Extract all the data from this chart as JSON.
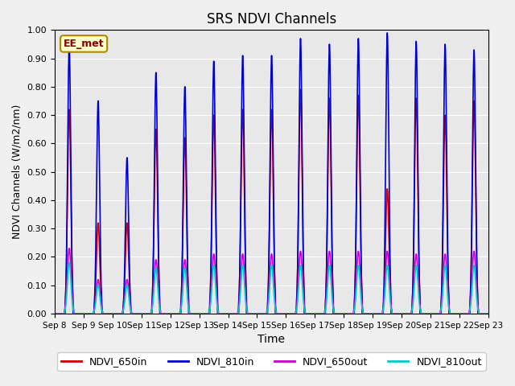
{
  "title": "SRS NDVI Channels",
  "xlabel": "Time",
  "ylabel": "NDVI Channels (W/m2/nm)",
  "annotation": "EE_met",
  "xlim_days": [
    0,
    15
  ],
  "ylim": [
    0.0,
    1.0
  ],
  "yticks": [
    0.0,
    0.1,
    0.2,
    0.3,
    0.4,
    0.5,
    0.6,
    0.7,
    0.8,
    0.9,
    1.0
  ],
  "x_tick_labels": [
    "Sep 8",
    "Sep 9",
    "Sep 10",
    "Sep 11",
    "Sep 12",
    "Sep 13",
    "Sep 14",
    "Sep 15",
    "Sep 16",
    "Sep 17",
    "Sep 18",
    "Sep 19",
    "Sep 20",
    "Sep 21",
    "Sep 22",
    "Sep 23"
  ],
  "background_color": "#e8e8e8",
  "colors": {
    "NDVI_650in": "#cc0000",
    "NDVI_810in": "#0000cc",
    "NDVI_650out": "#cc00cc",
    "NDVI_810out": "#00cccc"
  },
  "peak_810in": [
    0.95,
    0.75,
    0.55,
    0.85,
    0.8,
    0.89,
    0.91,
    0.91,
    0.97,
    0.95,
    0.97,
    0.99,
    0.96,
    0.95,
    0.93
  ],
  "peak_650in": [
    0.72,
    0.32,
    0.32,
    0.65,
    0.62,
    0.7,
    0.72,
    0.72,
    0.79,
    0.76,
    0.77,
    0.44,
    0.76,
    0.7,
    0.75
  ],
  "peak_650out": [
    0.23,
    0.12,
    0.12,
    0.19,
    0.19,
    0.21,
    0.21,
    0.21,
    0.22,
    0.22,
    0.22,
    0.22,
    0.21,
    0.21,
    0.22
  ],
  "peak_810out": [
    0.18,
    0.1,
    0.1,
    0.16,
    0.16,
    0.17,
    0.17,
    0.17,
    0.17,
    0.17,
    0.17,
    0.17,
    0.17,
    0.17,
    0.17
  ],
  "samples_per_day": 120,
  "total_days": 15
}
